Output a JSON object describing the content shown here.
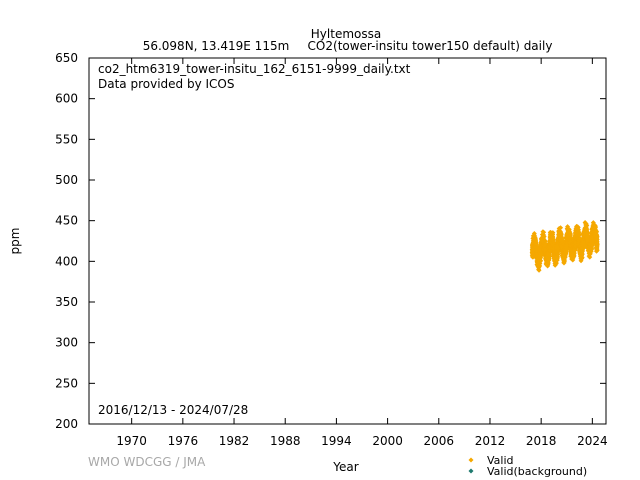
{
  "chart_data": {
    "type": "scatter",
    "title": "Hyltemossa",
    "subtitle_location": "56.098N, 13.419E 115m",
    "subtitle_dataset": "CO2(tower-insitu tower150 default) daily",
    "file_name": "co2_htm6319_tower-insitu_162_6151-9999_daily.txt",
    "provider": "Data provided by ICOS",
    "date_range": "2016/12/13 - 2024/07/28",
    "xlabel": "Year",
    "ylabel": "ppm",
    "xlim": [
      1965.0,
      2025.6
    ],
    "ylim": [
      200,
      650
    ],
    "xticks": [
      1970,
      1976,
      1982,
      1988,
      1994,
      2000,
      2006,
      2012,
      2018,
      2024
    ],
    "yticks": [
      200,
      250,
      300,
      350,
      400,
      450,
      500,
      550,
      600,
      650
    ],
    "grid": false,
    "legend_position": "bottom-right",
    "series": [
      {
        "name": "Valid",
        "color": "#f5a800",
        "marker": "diamond",
        "x_start": 2016.95,
        "x_end": 2024.57,
        "trend_start": 410.5,
        "trend_slope_per_year": 2.4,
        "seasonal_amplitude": 11,
        "peak_month_fraction": 0.2,
        "daily_noise": 5,
        "min_value": 389,
        "max_value": 453
      },
      {
        "name": "Valid(background)",
        "color": "#1e7a6e",
        "marker": "diamond",
        "points": []
      }
    ]
  },
  "credit": "WMO WDCGG / JMA"
}
